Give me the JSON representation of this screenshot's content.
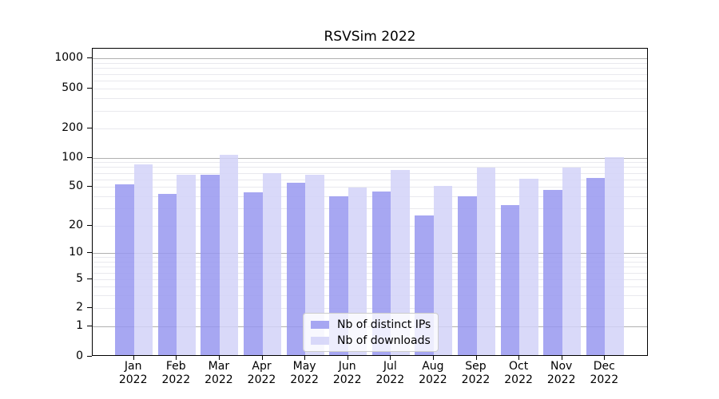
{
  "figure": {
    "title": "RSVSim 2022"
  },
  "chart_data": {
    "type": "bar",
    "title": "RSVSim 2022",
    "yscale": "symlog",
    "grid": "both",
    "ylim": [
      0,
      1200
    ],
    "categories": [
      "Jan 2022",
      "Feb 2022",
      "Mar 2022",
      "Apr 2022",
      "May 2022",
      "Jun 2022",
      "Jul 2022",
      "Aug 2022",
      "Sep 2022",
      "Oct 2022",
      "Nov 2022",
      "Dec 2022"
    ],
    "x_tick_months": [
      "Jan",
      "Feb",
      "Mar",
      "Apr",
      "May",
      "Jun",
      "Jul",
      "Aug",
      "Sep",
      "Oct",
      "Nov",
      "Dec"
    ],
    "x_tick_year": "2022",
    "y_tick_labels": [
      "1000",
      "500",
      "200",
      "100",
      "50",
      "20",
      "10",
      "5",
      "2",
      "1",
      "0"
    ],
    "series": [
      {
        "name": "Nb of distinct IPs",
        "color": "#9898f0",
        "values": [
          52,
          42,
          66,
          43,
          54,
          39,
          44,
          25,
          39,
          32,
          46,
          61
        ]
      },
      {
        "name": "Nb of downloads",
        "color": "#d2d2f8",
        "values": [
          84,
          66,
          105,
          68,
          65,
          48,
          74,
          50,
          78,
          60,
          78,
          99
        ]
      }
    ],
    "legend": {
      "position": "lower center",
      "items": [
        "Nb of distinct IPs",
        "Nb of downloads"
      ]
    },
    "colors": {
      "ips_bar": "#9898f0",
      "downloads_bar": "#d2d2f8",
      "grid_major": "#b0b0b0",
      "grid_minor": "#e9e9ee",
      "axis": "#000000"
    }
  }
}
